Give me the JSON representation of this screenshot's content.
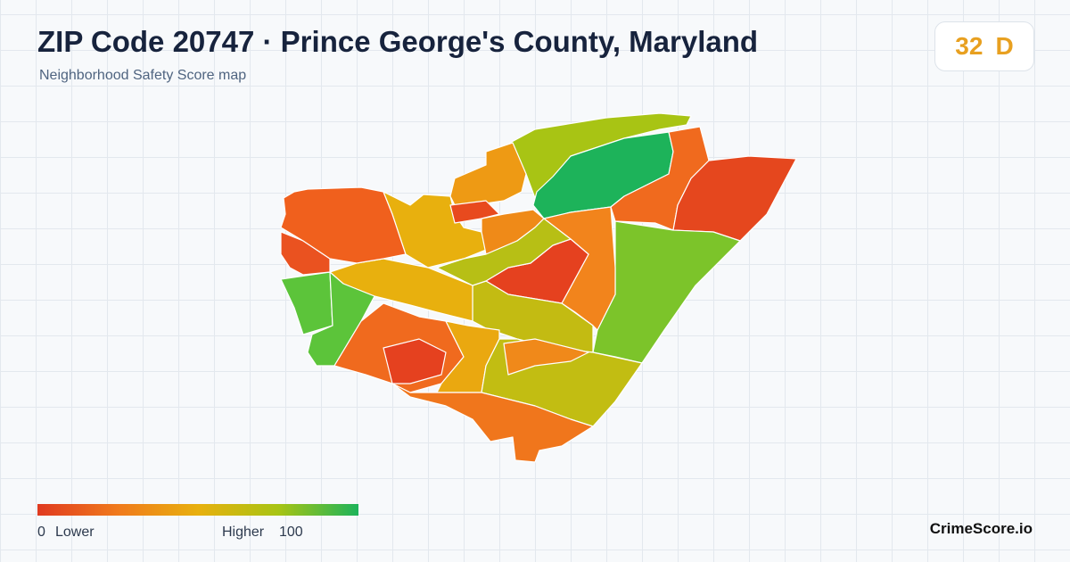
{
  "header": {
    "title": "ZIP Code 20747 · Prince George's County, Maryland",
    "subtitle": "Neighborhood Safety Score map"
  },
  "score": {
    "value": 32,
    "grade": "D"
  },
  "legend": {
    "min": 0,
    "min_label": "Lower",
    "max_label": "Higher",
    "max": 100
  },
  "footer": {
    "brand": "CrimeScore.io"
  }
}
